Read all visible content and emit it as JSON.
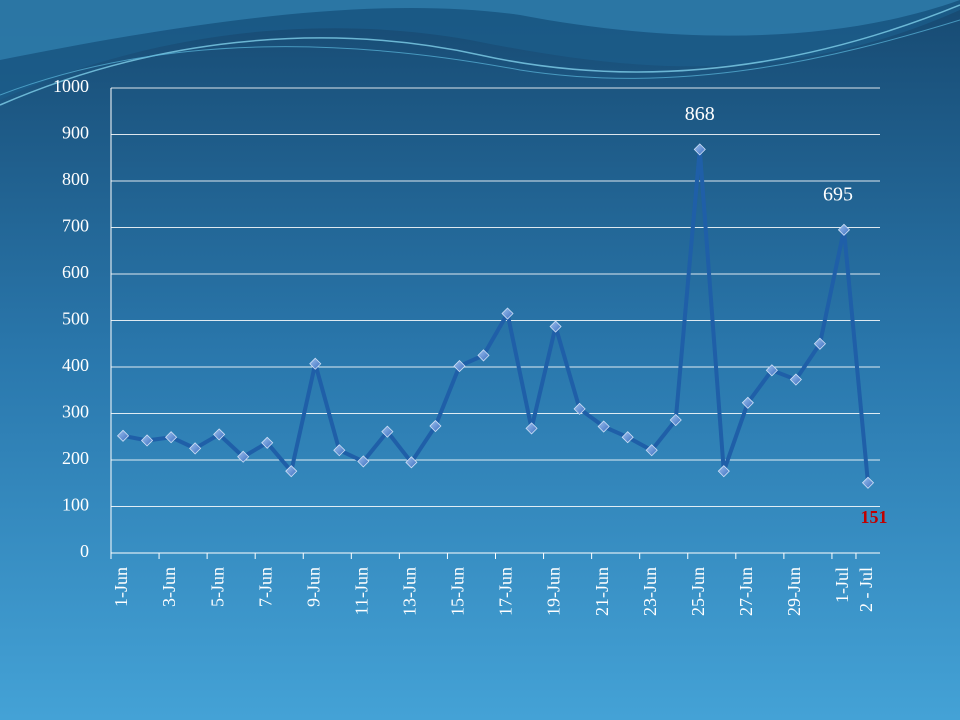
{
  "chart_data": {
    "type": "line",
    "categories": [
      "1-Jun",
      null,
      "3-Jun",
      null,
      "5-Jun",
      null,
      "7-Jun",
      null,
      "9-Jun",
      null,
      "11-Jun",
      null,
      "13-Jun",
      null,
      "15-Jun",
      null,
      "17-Jun",
      null,
      "19-Jun",
      null,
      "21-Jun",
      null,
      "23-Jun",
      null,
      "25-Jun",
      null,
      "27-Jun",
      null,
      "29-Jun",
      null,
      "1-Jul",
      "2 - Jul"
    ],
    "values": [
      252,
      242,
      249,
      225,
      255,
      207,
      237,
      176,
      407,
      221,
      197,
      261,
      195,
      273,
      402,
      425,
      515,
      268,
      487,
      310,
      272,
      249,
      221,
      286,
      868,
      176,
      323,
      393,
      373,
      450,
      695,
      151
    ],
    "color": "#1f5fa8",
    "ylim": [
      0,
      1000
    ],
    "yticks": [
      0,
      100,
      200,
      300,
      400,
      500,
      600,
      700,
      800,
      900,
      1000
    ],
    "grid": true
  }
}
